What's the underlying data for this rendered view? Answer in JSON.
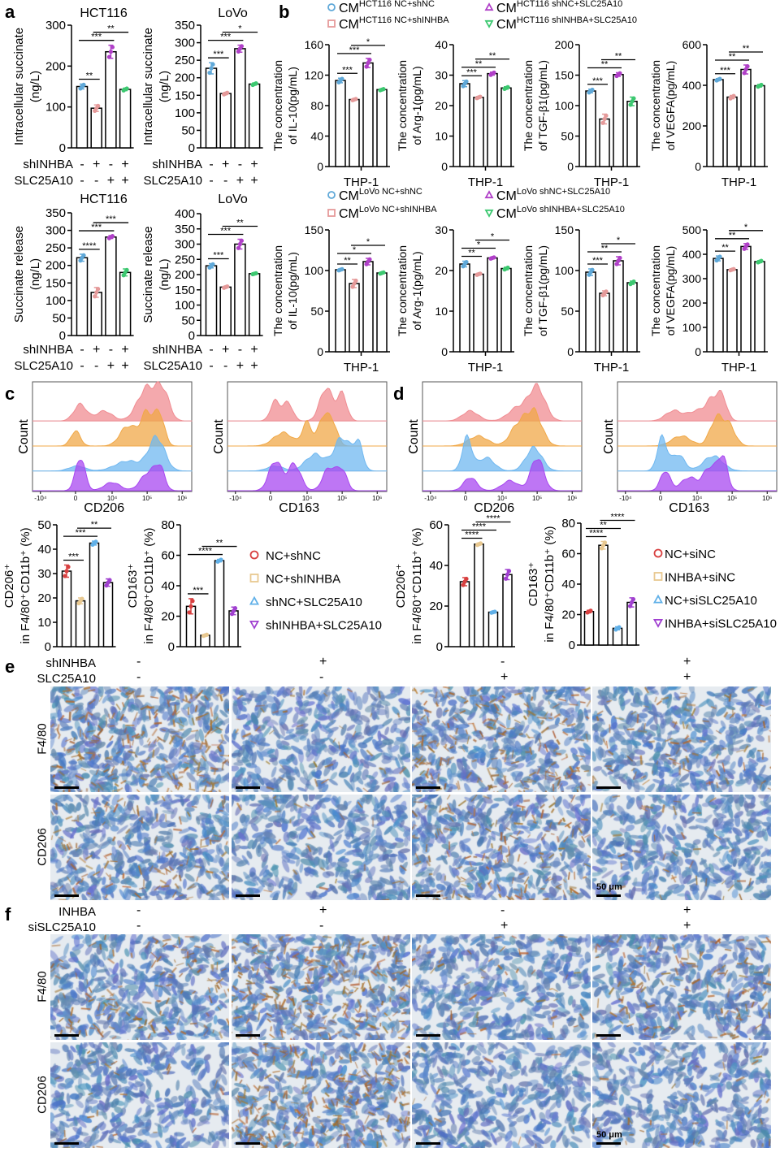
{
  "panel_labels": {
    "a": "a",
    "b": "b",
    "c": "c",
    "d": "d",
    "e": "e",
    "f": "f"
  },
  "point_colors": {
    "b": [
      "#5fa8d8",
      "#e59a9a",
      "#b040c8",
      "#3cc870"
    ],
    "c": [
      "#d84040",
      "#e8c890",
      "#60b0e8",
      "#a040d0"
    ],
    "d": [
      "#d84040",
      "#e8c890",
      "#60b0e8",
      "#a040d0"
    ]
  },
  "panel_a": {
    "group_rows": [
      {
        "label": "shINHBA",
        "signs": [
          "-",
          "+",
          "-",
          "+"
        ]
      },
      {
        "label": "SLC25A10",
        "signs": [
          "-",
          "-",
          "+",
          "+"
        ]
      }
    ],
    "charts": [
      {
        "title": "HCT116",
        "ylabel": [
          "Intracellular succinate",
          "(ng/L)"
        ],
        "ylim": [
          0,
          300
        ],
        "yticks": [
          0,
          100,
          200,
          300
        ],
        "values": [
          150,
          97,
          235,
          143
        ],
        "sd": [
          6,
          8,
          16,
          3
        ],
        "sig": [
          [
            0,
            1,
            "**"
          ],
          [
            0,
            2,
            "***"
          ],
          [
            1,
            3,
            "**"
          ]
        ]
      },
      {
        "title": "LoVo",
        "ylabel": [
          "Intracellular succinate",
          "(ng/L)"
        ],
        "ylim": [
          0,
          350
        ],
        "yticks": [
          0,
          50,
          100,
          150,
          200,
          250,
          300,
          350
        ],
        "values": [
          227,
          155,
          283,
          182
        ],
        "sd": [
          16,
          3,
          10,
          3
        ],
        "sig": [
          [
            0,
            1,
            "***"
          ],
          [
            0,
            2,
            "***"
          ],
          [
            1,
            3,
            "*"
          ]
        ]
      },
      {
        "title": "HCT116",
        "ylabel": [
          "Succinate release",
          "(ng/L)"
        ],
        "ylim": [
          0,
          350
        ],
        "yticks": [
          0,
          50,
          100,
          150,
          200,
          250,
          300,
          350
        ],
        "values": [
          222,
          123,
          281,
          180
        ],
        "sd": [
          10,
          14,
          4,
          10
        ],
        "sig": [
          [
            0,
            1,
            "****"
          ],
          [
            0,
            2,
            "***"
          ],
          [
            1,
            3,
            "***"
          ]
        ]
      },
      {
        "title": "LoVo",
        "ylabel": [
          "Succinate release",
          "(ng/L)"
        ],
        "ylim": [
          0,
          400
        ],
        "yticks": [
          0,
          50,
          100,
          150,
          200,
          250,
          300,
          350,
          400
        ],
        "values": [
          229,
          159,
          300,
          203
        ],
        "sd": [
          7,
          3,
          16,
          2
        ],
        "sig": [
          [
            0,
            1,
            "***"
          ],
          [
            0,
            2,
            "***"
          ],
          [
            1,
            3,
            "**"
          ]
        ]
      }
    ]
  },
  "panel_b": {
    "xlabel": "THP-1",
    "legend_top": [
      {
        "marker": "circle",
        "main": "CM",
        "sup": "HCT116 NC+shNC"
      },
      {
        "marker": "square",
        "main": "CM",
        "sup": "HCT116 NC+shINHBA"
      },
      {
        "marker": "triangle-up",
        "main": "CM",
        "sup": "HCT116 shNC+SLC25A10"
      },
      {
        "marker": "triangle-down",
        "main": "CM",
        "sup": "HCT116 shINHBA+SLC25A10"
      }
    ],
    "legend_bottom": [
      {
        "marker": "circle",
        "main": "CM",
        "sup": "LoVo NC+shNC"
      },
      {
        "marker": "square",
        "main": "CM",
        "sup": "LoVo NC+shINHBA"
      },
      {
        "marker": "triangle-up",
        "main": "CM",
        "sup": "LoVo shNC+SLC25A10"
      },
      {
        "marker": "triangle-down",
        "main": "CM",
        "sup": "LoVo shINHBA+SLC25A10"
      }
    ],
    "charts_top": [
      {
        "ylabel": [
          "The concentration",
          "of IL-10(pg/mL)"
        ],
        "ylim": [
          0,
          160
        ],
        "yticks": [
          0,
          40,
          80,
          120,
          160
        ],
        "values": [
          113,
          88,
          136,
          101
        ],
        "sd": [
          3,
          1,
          6,
          1
        ],
        "sig": [
          [
            0,
            1,
            "***"
          ],
          [
            0,
            2,
            "***"
          ],
          [
            1,
            3,
            "*"
          ]
        ]
      },
      {
        "ylabel": [
          "The concentration",
          "of Arg-1(pg/mL)"
        ],
        "ylim": [
          0,
          40
        ],
        "yticks": [
          0,
          10,
          20,
          30,
          40
        ],
        "values": [
          27.2,
          22.7,
          30.5,
          25.8
        ],
        "sd": [
          1,
          0.3,
          0.5,
          0.4
        ],
        "sig": [
          [
            0,
            1,
            "***"
          ],
          [
            0,
            2,
            "**"
          ],
          [
            1,
            3,
            "**"
          ]
        ]
      },
      {
        "ylabel": [
          "The concentration",
          "of TGF-β1(pg/mL)"
        ],
        "ylim": [
          0,
          200
        ],
        "yticks": [
          0,
          50,
          100,
          150,
          200
        ],
        "values": [
          124,
          78,
          151,
          107
        ],
        "sd": [
          3,
          8,
          3,
          7
        ],
        "sig": [
          [
            0,
            1,
            "***"
          ],
          [
            0,
            2,
            "**"
          ],
          [
            1,
            3,
            "**"
          ]
        ]
      },
      {
        "ylabel": [
          "The concentration",
          "of VEGFA(pg/mL)"
        ],
        "ylim": [
          0,
          600
        ],
        "yticks": [
          0,
          200,
          400,
          600
        ],
        "values": [
          428,
          342,
          478,
          398
        ],
        "sd": [
          5,
          8,
          22,
          6
        ],
        "sig": [
          [
            0,
            1,
            "***"
          ],
          [
            0,
            2,
            "**"
          ],
          [
            1,
            3,
            "**"
          ]
        ]
      }
    ],
    "charts_bottom": [
      {
        "ylabel": [
          "The concentration",
          "of IL-10(pg/mL)"
        ],
        "ylim": [
          0,
          150
        ],
        "yticks": [
          0,
          50,
          100,
          150
        ],
        "values": [
          101,
          84,
          111,
          97
        ],
        "sd": [
          1,
          5,
          4,
          1
        ],
        "sig": [
          [
            0,
            1,
            "**"
          ],
          [
            0,
            2,
            "*"
          ],
          [
            1,
            3,
            "*"
          ]
        ]
      },
      {
        "ylabel": [
          "The concentration",
          "of Arg-1(pg/mL)"
        ],
        "ylim": [
          0,
          30
        ],
        "yticks": [
          0,
          10,
          20,
          30
        ],
        "values": [
          21.6,
          19.1,
          23.1,
          20.5
        ],
        "sd": [
          0.7,
          0.2,
          0.2,
          0.3
        ],
        "sig": [
          [
            0,
            1,
            "**"
          ],
          [
            0,
            2,
            "*"
          ],
          [
            1,
            3,
            "*"
          ]
        ]
      },
      {
        "ylabel": [
          "The concentration",
          "of TGF-β1(pg/mL)"
        ],
        "ylim": [
          0,
          150
        ],
        "yticks": [
          0,
          50,
          100,
          150
        ],
        "values": [
          98,
          72,
          112,
          85
        ],
        "sd": [
          4,
          3,
          5,
          2
        ],
        "sig": [
          [
            0,
            1,
            "***"
          ],
          [
            0,
            2,
            "**"
          ],
          [
            1,
            3,
            "*"
          ]
        ]
      },
      {
        "ylabel": [
          "The concentration",
          "of VEGFA(pg/mL)"
        ],
        "ylim": [
          0,
          500
        ],
        "yticks": [
          0,
          100,
          200,
          300,
          400,
          500
        ],
        "values": [
          383,
          337,
          432,
          370
        ],
        "sd": [
          10,
          3,
          12,
          4
        ],
        "sig": [
          [
            0,
            1,
            "**"
          ],
          [
            0,
            2,
            "**"
          ],
          [
            1,
            3,
            "*"
          ]
        ]
      }
    ]
  },
  "flow": {
    "ylabel": "Count",
    "xticks": [
      "-10⁴",
      "0",
      "10⁴",
      "10⁵",
      "10⁶"
    ],
    "histograms": [
      {
        "panel": "c",
        "xlabel": "CD206"
      },
      {
        "panel": "c",
        "xlabel": "CD163"
      },
      {
        "panel": "d",
        "xlabel": "CD206"
      },
      {
        "panel": "d",
        "xlabel": "CD163"
      }
    ],
    "colors": [
      "#f08c92",
      "#f0a848",
      "#70b8f0",
      "#a848f0"
    ]
  },
  "panel_c": {
    "legend": [
      "NC+shNC",
      "NC+shINHBA",
      "shNC+SLC25A10",
      "shINHBA+SLC25A10"
    ],
    "charts": [
      {
        "ylabel": [
          "CD206⁺",
          "in F4/80⁺CD11b⁺ (%)"
        ],
        "ylim": [
          0,
          50
        ],
        "yticks": [
          0,
          10,
          20,
          30,
          40,
          50
        ],
        "values": [
          31,
          18.8,
          42.5,
          26.3
        ],
        "sd": [
          2.5,
          1.2,
          0.8,
          1.5
        ],
        "sig": [
          [
            0,
            1,
            "***"
          ],
          [
            0,
            2,
            "***"
          ],
          [
            1,
            3,
            "**"
          ]
        ]
      },
      {
        "ylabel": [
          "CD163⁺",
          "in F4/80⁺CD11b⁺ (%)"
        ],
        "ylim": [
          0,
          80
        ],
        "yticks": [
          0,
          20,
          40,
          60,
          80
        ],
        "values": [
          26.5,
          7.5,
          56.5,
          23.5
        ],
        "sd": [
          5,
          0.5,
          0.8,
          2.5
        ],
        "sig": [
          [
            0,
            1,
            "***"
          ],
          [
            0,
            2,
            "****"
          ],
          [
            1,
            3,
            "**"
          ]
        ]
      }
    ]
  },
  "panel_d": {
    "legend": [
      "NC+siNC",
      "INHBA+siNC",
      "NC+siSLC25A10",
      "INHBA+siSLC25A10"
    ],
    "charts": [
      {
        "ylabel": [
          "CD206⁺",
          "in F4/80⁺CD11b⁺ (%)"
        ],
        "ylim": [
          0,
          60
        ],
        "yticks": [
          0,
          20,
          40,
          60
        ],
        "values": [
          32,
          50.5,
          17,
          35.5
        ],
        "sd": [
          2,
          0.5,
          0.3,
          2.5
        ],
        "sig": [
          [
            0,
            1,
            "****"
          ],
          [
            0,
            2,
            "****"
          ],
          [
            1,
            3,
            "****"
          ]
        ]
      },
      {
        "ylabel": [
          "CD163⁺",
          "in F4/80⁺CD11b⁺ (%)"
        ],
        "ylim": [
          0,
          80
        ],
        "yticks": [
          0,
          20,
          40,
          60,
          80
        ],
        "values": [
          22,
          65.5,
          11,
          28
        ],
        "sd": [
          0.8,
          2.5,
          1,
          3
        ],
        "sig": [
          [
            0,
            1,
            "****"
          ],
          [
            0,
            2,
            "**"
          ],
          [
            1,
            3,
            "****"
          ]
        ]
      }
    ]
  },
  "panel_e": {
    "conditions": [
      {
        "label": "shINHBA",
        "signs": [
          "-",
          "+",
          "-",
          "+"
        ]
      },
      {
        "label": "SLC25A10",
        "signs": [
          "-",
          "-",
          "+",
          "+"
        ]
      }
    ],
    "rows": [
      "F4/80",
      "CD206"
    ],
    "scale_label": "50 μm"
  },
  "panel_f": {
    "conditions": [
      {
        "label": "INHBA",
        "signs": [
          "-",
          "+",
          "-",
          "+"
        ]
      },
      {
        "label": "siSLC25A10",
        "signs": [
          "-",
          "-",
          "+",
          "+"
        ]
      }
    ],
    "rows": [
      "F4/80",
      "CD206"
    ],
    "scale_label": "50 μm"
  }
}
